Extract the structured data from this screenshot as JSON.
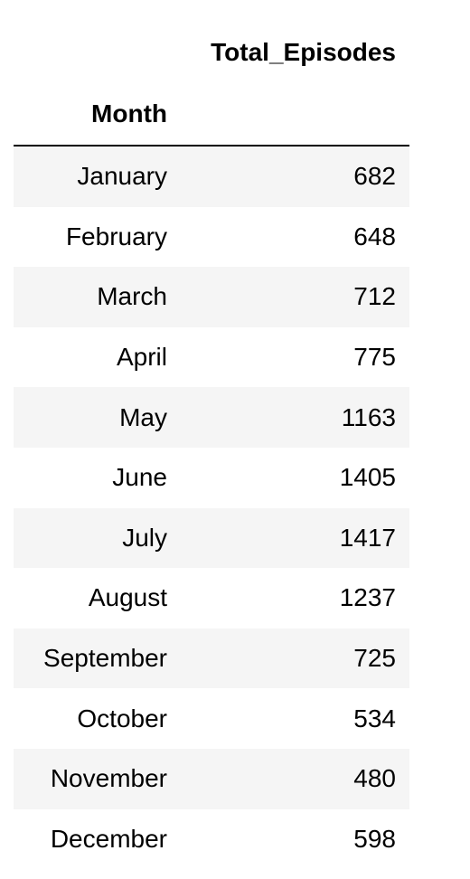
{
  "table": {
    "column_header": "Total_Episodes",
    "index_name": "Month",
    "rows": [
      {
        "month": "January",
        "value": "682"
      },
      {
        "month": "February",
        "value": "648"
      },
      {
        "month": "March",
        "value": "712"
      },
      {
        "month": "April",
        "value": "775"
      },
      {
        "month": "May",
        "value": "1163"
      },
      {
        "month": "June",
        "value": "1405"
      },
      {
        "month": "July",
        "value": "1417"
      },
      {
        "month": "August",
        "value": "1237"
      },
      {
        "month": "September",
        "value": "725"
      },
      {
        "month": "October",
        "value": "534"
      },
      {
        "month": "November",
        "value": "480"
      },
      {
        "month": "December",
        "value": "598"
      }
    ]
  }
}
